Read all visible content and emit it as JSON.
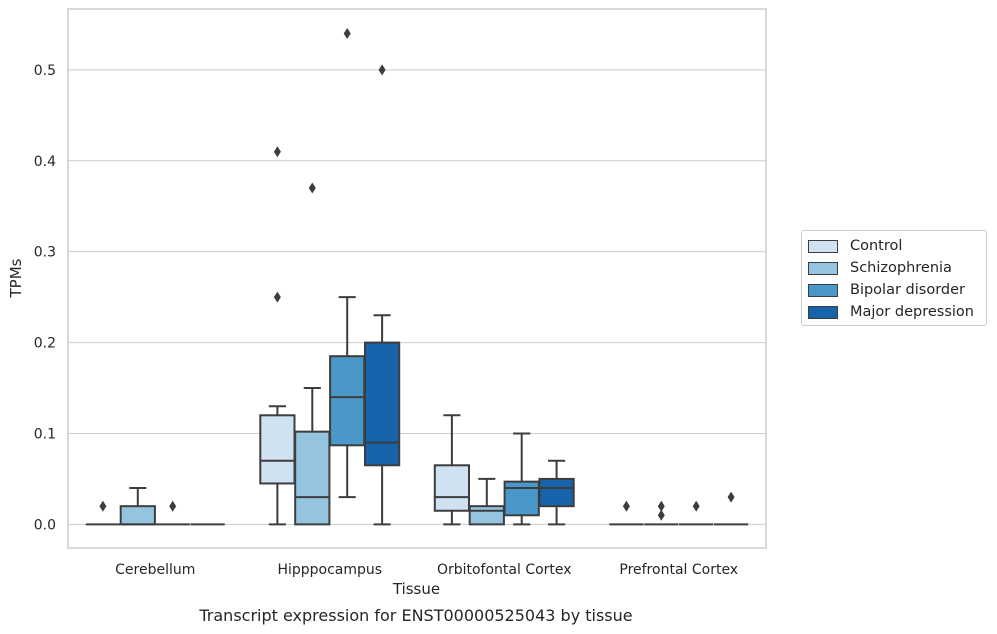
{
  "chart_data": {
    "type": "box",
    "title": "Transcript expression for ENST00000525043 by tissue",
    "xlabel": "Tissue",
    "ylabel": "TPMs",
    "ylim": [
      -0.026,
      0.567
    ],
    "yticks": [
      "0.0",
      "0.1",
      "0.2",
      "0.3",
      "0.4",
      "0.5"
    ],
    "ytick_values": [
      0,
      0.1,
      0.2,
      0.3,
      0.4,
      0.5
    ],
    "grid": "horizontal",
    "legend_position": "right",
    "categories": [
      "Cerebellum",
      "Hipppocampus",
      "Orbitofontal Cortex",
      "Prefrontal Cortex"
    ],
    "series": [
      {
        "name": "Control",
        "color": "#d0e1f2",
        "boxes": [
          {
            "whisker_low": 0,
            "q1": 0,
            "median": 0,
            "q3": 0,
            "whisker_high": 0,
            "outliers": [
              0.02
            ]
          },
          {
            "whisker_low": 0,
            "q1": 0.045,
            "median": 0.07,
            "q3": 0.12,
            "whisker_high": 0.13,
            "outliers": [
              0.41,
              0.25
            ]
          },
          {
            "whisker_low": 0,
            "q1": 0.015,
            "median": 0.03,
            "q3": 0.065,
            "whisker_high": 0.12,
            "outliers": []
          },
          {
            "whisker_low": 0,
            "q1": 0,
            "median": 0,
            "q3": 0,
            "whisker_high": 0,
            "outliers": [
              0.02
            ]
          }
        ]
      },
      {
        "name": "Schizophrenia",
        "color": "#94c4df",
        "boxes": [
          {
            "whisker_low": 0,
            "q1": 0,
            "median": 0,
            "q3": 0.02,
            "whisker_high": 0.04,
            "outliers": []
          },
          {
            "whisker_low": 0,
            "q1": 0,
            "median": 0.03,
            "q3": 0.102,
            "whisker_high": 0.15,
            "outliers": [
              0.37
            ]
          },
          {
            "whisker_low": 0,
            "q1": 0,
            "median": 0.015,
            "q3": 0.02,
            "whisker_high": 0.05,
            "outliers": []
          },
          {
            "whisker_low": 0,
            "q1": 0,
            "median": 0,
            "q3": 0,
            "whisker_high": 0,
            "outliers": [
              0.02,
              0.01
            ]
          }
        ]
      },
      {
        "name": "Bipolar disorder",
        "color": "#4a98c9",
        "boxes": [
          {
            "whisker_low": 0,
            "q1": 0,
            "median": 0,
            "q3": 0,
            "whisker_high": 0,
            "outliers": [
              0.02
            ]
          },
          {
            "whisker_low": 0.03,
            "q1": 0.087,
            "median": 0.14,
            "q3": 0.185,
            "whisker_high": 0.25,
            "outliers": [
              0.54
            ]
          },
          {
            "whisker_low": 0,
            "q1": 0.01,
            "median": 0.04,
            "q3": 0.047,
            "whisker_high": 0.1,
            "outliers": []
          },
          {
            "whisker_low": 0,
            "q1": 0,
            "median": 0,
            "q3": 0,
            "whisker_high": 0,
            "outliers": [
              0.02
            ]
          }
        ]
      },
      {
        "name": "Major depression",
        "color": "#1764ab",
        "boxes": [
          {
            "whisker_low": 0,
            "q1": 0,
            "median": 0,
            "q3": 0,
            "whisker_high": 0,
            "outliers": []
          },
          {
            "whisker_low": 0,
            "q1": 0.065,
            "median": 0.09,
            "q3": 0.2,
            "whisker_high": 0.23,
            "outliers": [
              0.5
            ]
          },
          {
            "whisker_low": 0,
            "q1": 0.02,
            "median": 0.04,
            "q3": 0.05,
            "whisker_high": 0.07,
            "outliers": []
          },
          {
            "whisker_low": 0,
            "q1": 0,
            "median": 0,
            "q3": 0,
            "whisker_high": 0,
            "outliers": [
              0.03
            ]
          }
        ]
      }
    ]
  }
}
